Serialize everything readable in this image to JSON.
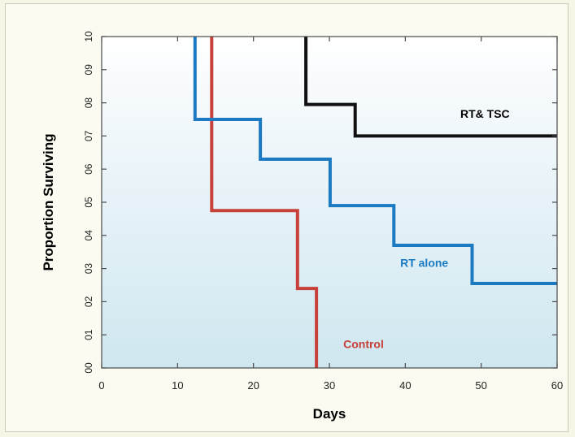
{
  "chart_data": {
    "type": "line",
    "subtype": "step",
    "title": "",
    "xlabel": "Days",
    "ylabel": "Proportion Surviving",
    "xlim": [
      0,
      60
    ],
    "ylim": [
      0,
      1
    ],
    "xticks": [
      "0",
      "10",
      "20",
      "30",
      "40",
      "50",
      "60"
    ],
    "yticks": [
      "00",
      "01",
      "02",
      "03",
      "04",
      "05",
      "06",
      "07",
      "08",
      "09",
      "10"
    ],
    "grid": false,
    "legend": "inline labels",
    "series": [
      {
        "name": "Control",
        "color": "#c8403a",
        "points": [
          [
            14.5,
            1.0
          ],
          [
            14.5,
            0.475
          ],
          [
            25.8,
            0.475
          ],
          [
            25.8,
            0.24
          ],
          [
            28.3,
            0.24
          ],
          [
            28.3,
            0.0
          ]
        ],
        "start_x": 0
      },
      {
        "name": "RT alone",
        "color": "#1b7ac2",
        "points": [
          [
            12.3,
            1.0
          ],
          [
            12.3,
            0.75
          ],
          [
            20.9,
            0.75
          ],
          [
            20.9,
            0.63
          ],
          [
            30.1,
            0.63
          ],
          [
            30.1,
            0.49
          ],
          [
            38.5,
            0.49
          ],
          [
            38.5,
            0.37
          ],
          [
            48.8,
            0.37
          ],
          [
            48.8,
            0.255
          ],
          [
            60,
            0.255
          ]
        ],
        "start_x": 0
      },
      {
        "name": "RT& TSC",
        "color": "#111111",
        "points": [
          [
            26.9,
            1.0
          ],
          [
            26.9,
            0.795
          ],
          [
            33.4,
            0.795
          ],
          [
            33.4,
            0.7
          ],
          [
            60,
            0.7
          ]
        ],
        "start_x": 0
      }
    ],
    "annotations": [
      {
        "text": "RT& TSC",
        "series": "RT& TSC",
        "x": 50.5,
        "y": 0.755
      },
      {
        "text": "RT alone",
        "series": "RT alone",
        "x": 42.5,
        "y": 0.305
      },
      {
        "text": "Control",
        "series": "Control",
        "x": 34.5,
        "y": 0.06
      }
    ]
  }
}
